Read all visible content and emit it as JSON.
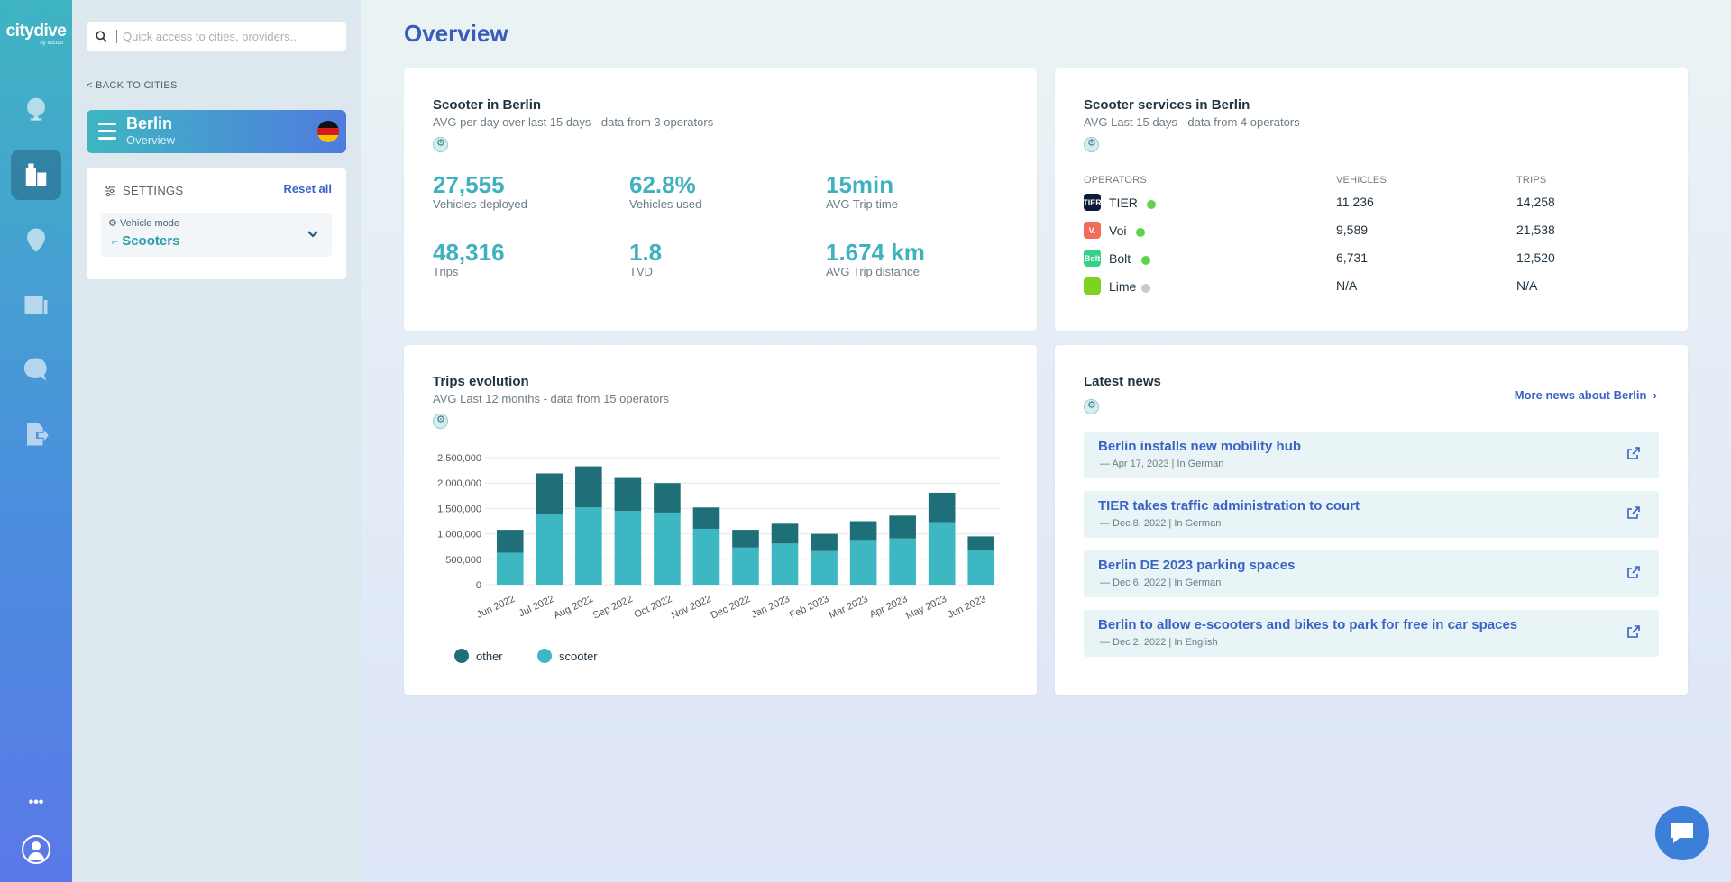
{
  "brand": {
    "name": "citydive",
    "by": "by fluctuo"
  },
  "rail": {
    "items": [
      "globe-icon",
      "city-icon",
      "location-icon",
      "news-icon",
      "help-icon",
      "export-icon"
    ],
    "more": "•••"
  },
  "sidebar": {
    "search_placeholder": "Quick access to cities, providers...",
    "back_label": "BACK TO CITIES",
    "city": {
      "name": "Berlin",
      "subtitle": "Overview"
    },
    "settings": {
      "label": "SETTINGS",
      "reset": "Reset all",
      "vehicle_mode_label": "Vehicle mode",
      "vehicle_mode_value": "Scooters"
    }
  },
  "page": {
    "title": "Overview"
  },
  "scooters_card": {
    "title": "Scooter in Berlin",
    "subtitle": "AVG per day over last 15 days - data from 3 operators",
    "stats": [
      {
        "value": "27,555",
        "label": "Vehicles deployed"
      },
      {
        "value": "62.8%",
        "label": "Vehicles used"
      },
      {
        "value": "15min",
        "label": "AVG Trip time"
      },
      {
        "value": "48,316",
        "label": "Trips"
      },
      {
        "value": "1.8",
        "label": "TVD"
      },
      {
        "value": "1.674 km",
        "label": "AVG Trip distance"
      }
    ]
  },
  "services_card": {
    "title": "Scooter services in Berlin",
    "subtitle": "AVG Last 15 days - data from 4 operators",
    "headers": {
      "operators": "OPERATORS",
      "vehicles": "VEHICLES",
      "trips": "TRIPS"
    },
    "rows": [
      {
        "name": "TIER",
        "vehicles": "11,236",
        "trips": "14,258",
        "logo_text": "TIER",
        "logo_color": "#0e1a3a",
        "status_color": "#5fd34a"
      },
      {
        "name": "Voi",
        "vehicles": "9,589",
        "trips": "21,538",
        "logo_text": "V.",
        "logo_color": "#f26b5b",
        "status_color": "#5fd34a"
      },
      {
        "name": "Bolt",
        "vehicles": "6,731",
        "trips": "12,520",
        "logo_text": "Bolt",
        "logo_color": "#34d186",
        "status_color": "#5fd34a"
      },
      {
        "name": "Lime",
        "vehicles": "N/A",
        "trips": "N/A",
        "logo_text": "",
        "logo_color": "#7cd321",
        "status_color": "#c3c9cc"
      }
    ]
  },
  "trips_card": {
    "title": "Trips evolution",
    "subtitle": "AVG Last 12 months - data from 15 operators"
  },
  "chart_data": {
    "type": "bar",
    "stacked": true,
    "categories": [
      "Jun 2022",
      "Jul 2022",
      "Aug 2022",
      "Sep 2022",
      "Oct 2022",
      "Nov 2022",
      "Dec 2022",
      "Jan 2023",
      "Feb 2023",
      "Mar 2023",
      "Apr 2023",
      "May 2023",
      "Jun 2023"
    ],
    "series": [
      {
        "name": "scooter",
        "color": "#3db8c2",
        "values": [
          630000,
          1390000,
          1520000,
          1450000,
          1420000,
          1100000,
          730000,
          810000,
          660000,
          880000,
          910000,
          1230000,
          680000
        ]
      },
      {
        "name": "other",
        "color": "#1f6f78",
        "values": [
          450000,
          800000,
          810000,
          650000,
          580000,
          420000,
          350000,
          390000,
          340000,
          370000,
          450000,
          580000,
          270000
        ]
      }
    ],
    "yticks": [
      "0",
      "500,000",
      "1,000,000",
      "1,500,000",
      "2,000,000",
      "2,500,000"
    ],
    "ylim": [
      0,
      2500000
    ],
    "legend": [
      "other",
      "scooter"
    ],
    "legend_position": "bottom-left",
    "grid": true
  },
  "news_card": {
    "title": "Latest news",
    "more": "More news about Berlin",
    "items": [
      {
        "title": "Berlin installs new mobility hub",
        "meta": "— Apr 17, 2023 | In German"
      },
      {
        "title": "TIER takes traffic administration to court",
        "meta": "— Dec 8, 2022 | In German"
      },
      {
        "title": "Berlin DE 2023 parking spaces",
        "meta": "— Dec 6, 2022 | In German"
      },
      {
        "title": "Berlin to allow e-scooters and bikes to park for free in car spaces",
        "meta": "— Dec 2, 2022 | In English"
      }
    ]
  }
}
